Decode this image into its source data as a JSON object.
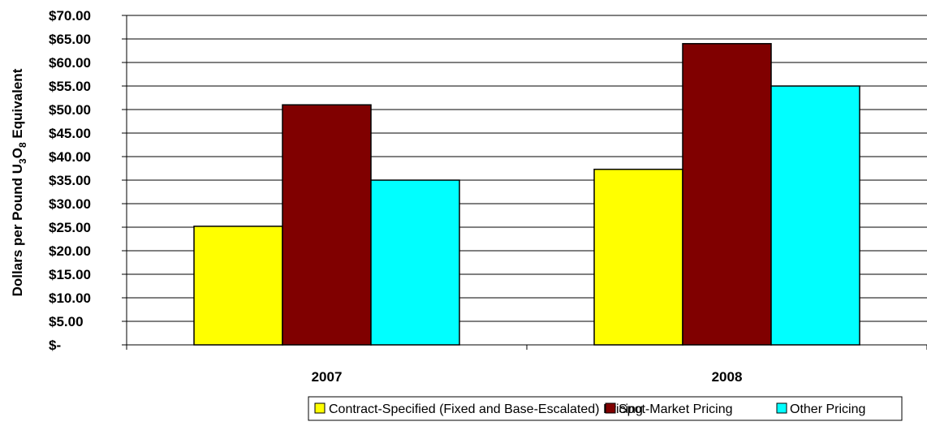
{
  "chart_data": {
    "type": "bar",
    "title": "",
    "xlabel": "",
    "ylabel_parts": [
      "Dollars per Pound U",
      "3",
      "O",
      "8",
      " Equivalent"
    ],
    "categories": [
      "2007",
      "2008"
    ],
    "series": [
      {
        "name": "Contract-Specified (Fixed and Base-Escalated) Pricing",
        "color": "#FFFF00",
        "values": [
          25.2,
          37.3
        ]
      },
      {
        "name": "Spot-Market Pricing",
        "color": "#800000",
        "values": [
          51.0,
          64.0
        ]
      },
      {
        "name": "Other Pricing",
        "color": "#00FFFF",
        "values": [
          35.0,
          55.0
        ]
      }
    ],
    "ylim": [
      0,
      70
    ],
    "y_ticks": [
      0,
      5,
      10,
      15,
      20,
      25,
      30,
      35,
      40,
      45,
      50,
      55,
      60,
      65,
      70
    ],
    "y_tick_labels": [
      "$-",
      "$5.00",
      "$10.00",
      "$15.00",
      "$20.00",
      "$25.00",
      "$30.00",
      "$35.00",
      "$40.00",
      "$45.00",
      "$50.00",
      "$55.00",
      "$60.00",
      "$65.00",
      "$70.00"
    ],
    "grid": true,
    "legend_position": "bottom"
  }
}
